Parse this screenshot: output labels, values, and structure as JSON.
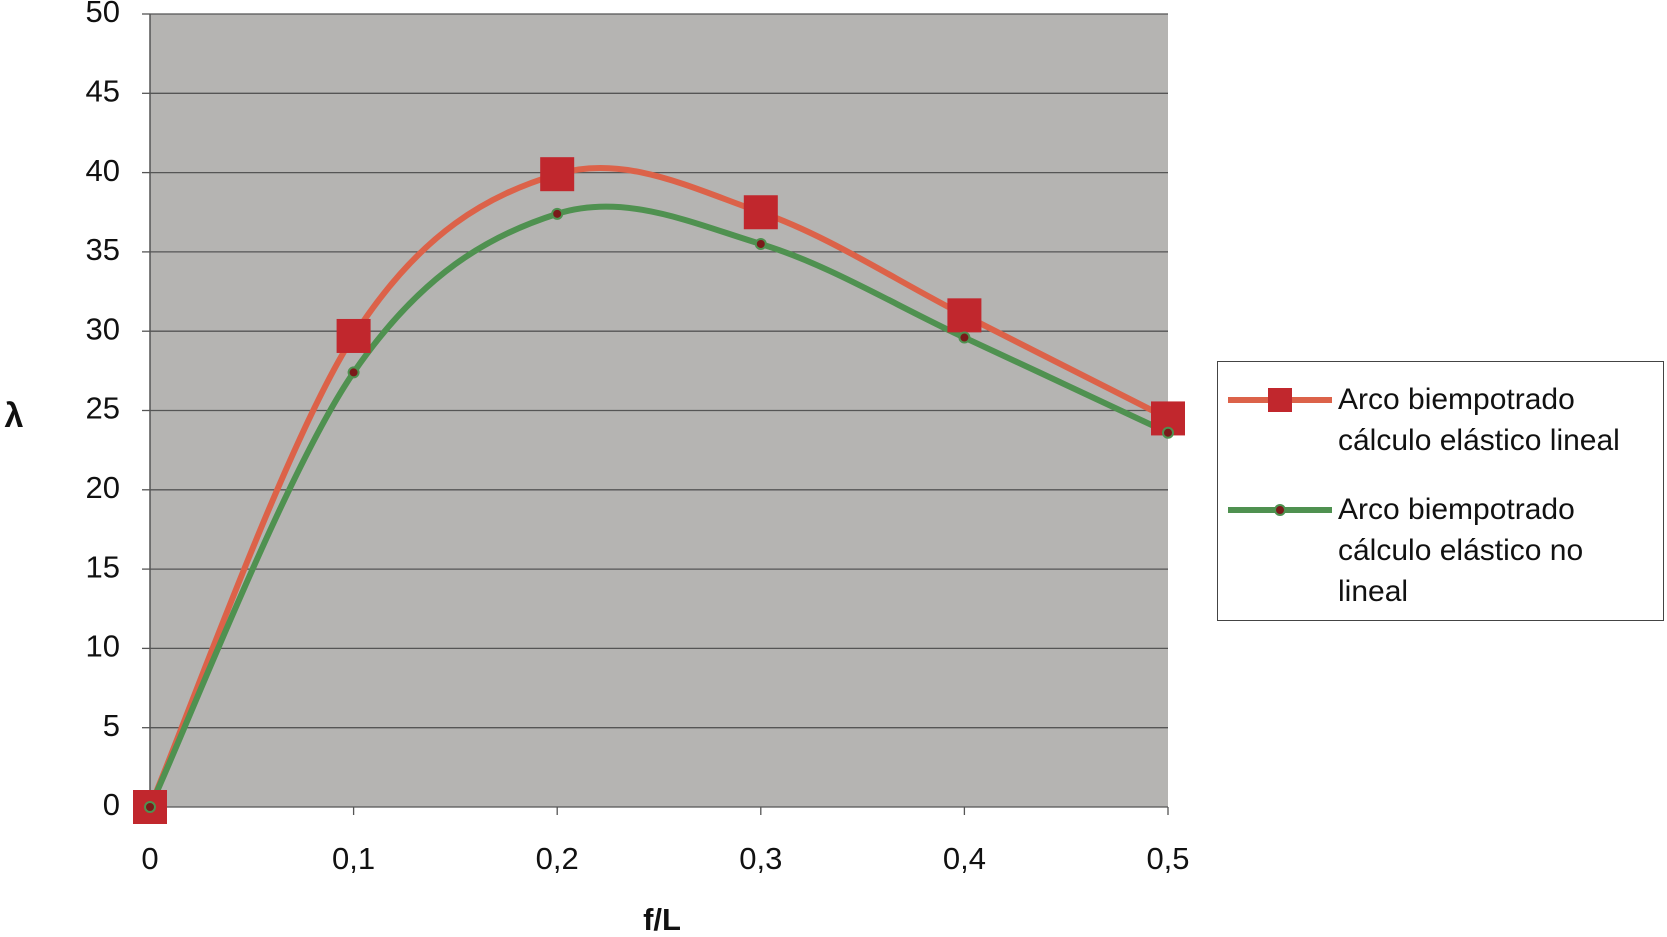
{
  "chart_data": {
    "type": "line",
    "x_label": "f/L",
    "y_label": "λ",
    "x": [
      0,
      0.1,
      0.2,
      0.3,
      0.4,
      0.5
    ],
    "series": [
      {
        "name": "Arco biempotrado cálculo elástico lineal",
        "color": "#dc6249",
        "marker": "square",
        "marker_color": "#c1272d",
        "values": [
          0,
          29.7,
          39.9,
          37.5,
          31,
          24.5
        ]
      },
      {
        "name": "Arco biempotrado cálculo elástico no lineal",
        "color": "#4f9150",
        "marker": "circle",
        "marker_color": "#7a1a1a",
        "values": [
          0,
          27.4,
          37.4,
          35.5,
          29.6,
          23.6
        ]
      }
    ],
    "xlim": [
      0,
      0.5
    ],
    "xticks": [
      0,
      {
        "value": 0.1,
        "label": "0,1"
      },
      {
        "value": 0.2,
        "label": "0,2"
      },
      {
        "value": 0.3,
        "label": "0,3"
      },
      {
        "value": 0.4,
        "label": "0,4"
      },
      {
        "value": 0.5,
        "label": "0,5"
      }
    ],
    "ylim": [
      0,
      50
    ],
    "yticks": [
      0,
      5,
      10,
      15,
      20,
      25,
      30,
      35,
      40,
      45,
      50
    ],
    "grid": true,
    "smooth": true,
    "plot_background": "#b5b4b2",
    "legend": "right"
  }
}
